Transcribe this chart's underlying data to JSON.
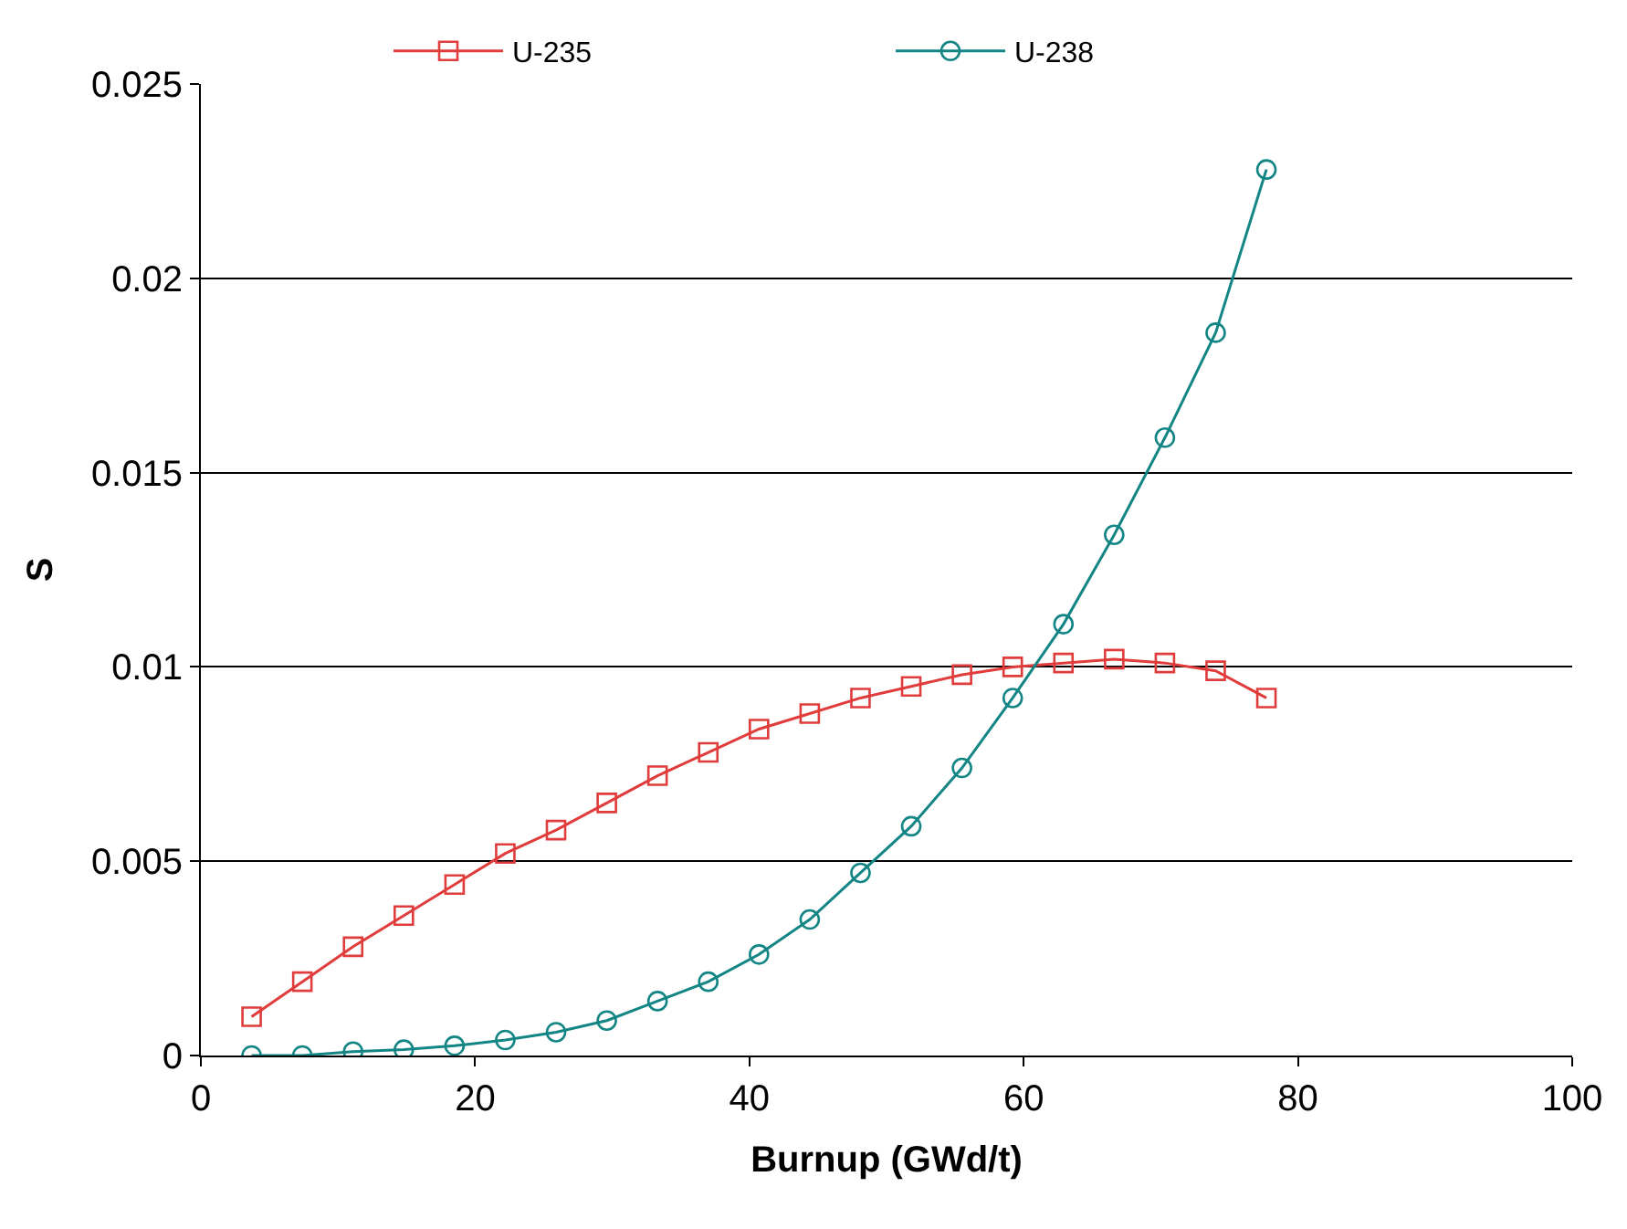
{
  "chart_data": {
    "type": "line",
    "xlabel": "Burnup (GWd/t)",
    "ylabel": "S",
    "x": [
      3.7,
      7.4,
      11.1,
      14.8,
      18.5,
      22.2,
      25.9,
      29.6,
      33.3,
      37.0,
      40.7,
      44.4,
      48.1,
      51.8,
      55.5,
      59.2,
      62.9,
      66.6,
      70.3,
      74.0,
      77.7
    ],
    "series": [
      {
        "name": "U-235",
        "color": "#e03c3c",
        "marker": "square",
        "values": [
          0.001,
          0.0019,
          0.0028,
          0.0036,
          0.0044,
          0.0052,
          0.0058,
          0.0065,
          0.0072,
          0.0078,
          0.0084,
          0.0088,
          0.0092,
          0.0095,
          0.0098,
          0.01,
          0.0101,
          0.0102,
          0.0101,
          0.0099,
          0.0092
        ]
      },
      {
        "name": "U-238",
        "color": "#138585",
        "marker": "circle",
        "values": [
          0.0,
          0.0,
          0.0001,
          0.00015,
          0.00025,
          0.0004,
          0.0006,
          0.0009,
          0.0014,
          0.0019,
          0.0026,
          0.0035,
          0.0047,
          0.0059,
          0.0074,
          0.0092,
          0.0111,
          0.0134,
          0.0159,
          0.0186,
          0.0228
        ]
      }
    ],
    "xlim": [
      0,
      100
    ],
    "xticks": [
      0,
      20,
      40,
      60,
      80,
      100
    ],
    "ylim": [
      0,
      0.025
    ],
    "yticks": [
      0,
      0.005,
      0.01,
      0.015,
      0.02,
      0.025
    ],
    "grid": "y",
    "legend": "top"
  }
}
